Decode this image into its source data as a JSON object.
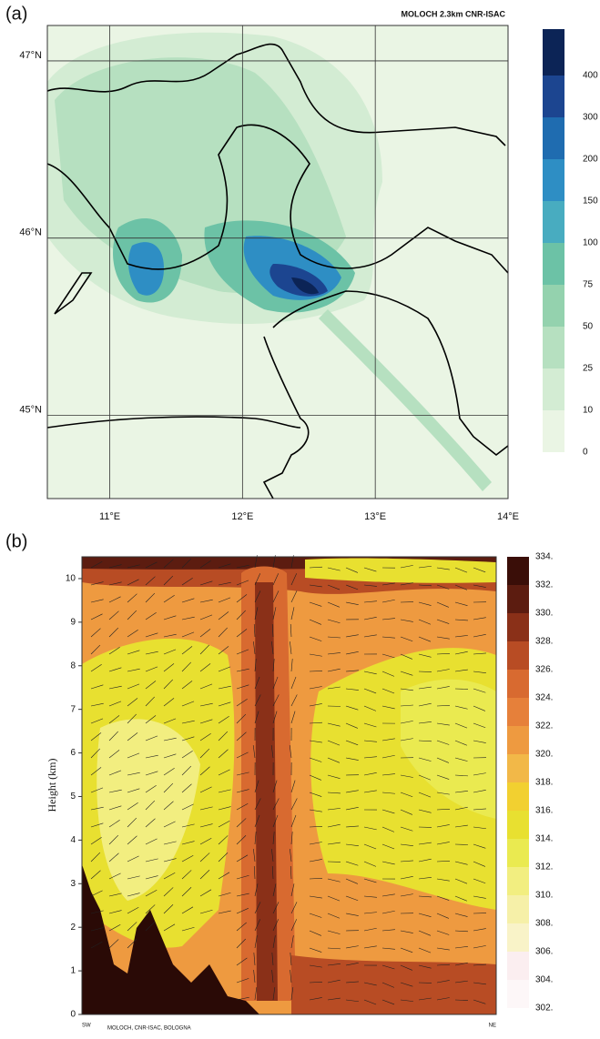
{
  "chart_data": [
    {
      "type": "map",
      "panel_label": "(a)",
      "annotation": "MOLOCH 2.3km  CNR-ISAC",
      "xlim": [
        10.53,
        14
      ],
      "xticks": [
        {
          "value": 11,
          "label": "11°E"
        },
        {
          "value": 12,
          "label": "12°E"
        },
        {
          "value": 13,
          "label": "13°E"
        },
        {
          "value": 14,
          "label": "14°E"
        }
      ],
      "ylim": [
        44.53,
        47.2
      ],
      "yticks": [
        {
          "value": 45,
          "label": "45°N"
        },
        {
          "value": 46,
          "label": "46°N"
        },
        {
          "value": 47,
          "label": "47°N"
        }
      ],
      "grid": true,
      "colorbar": {
        "levels": [
          0,
          10,
          25,
          50,
          75,
          100,
          150,
          200,
          300,
          400
        ],
        "colors": [
          "#eaf5e4",
          "#d3ecd3",
          "#b6e0c0",
          "#94d2ae",
          "#6cc2a6",
          "#48acc0",
          "#2e8ec4",
          "#1f6cb0",
          "#1c4590",
          "#0c2456"
        ]
      }
    },
    {
      "type": "cross-section",
      "panel_label": "(b)",
      "ylabel": "Height (km)",
      "ylim": [
        0,
        10.5
      ],
      "yticks": [
        0,
        1,
        2,
        3,
        4,
        5,
        6,
        7,
        8,
        9,
        10
      ],
      "x_start_label": "SW",
      "x_end_label": "NE",
      "footer": "MOLOCH, CNR-ISAC, BOLOGNA",
      "colorbar": {
        "levels": [
          {
            "value": 302,
            "label": "302."
          },
          {
            "value": 304,
            "label": "304."
          },
          {
            "value": 306,
            "label": "306."
          },
          {
            "value": 308,
            "label": "308."
          },
          {
            "value": 310,
            "label": "310."
          },
          {
            "value": 312,
            "label": "312."
          },
          {
            "value": 314,
            "label": "314."
          },
          {
            "value": 316,
            "label": "316."
          },
          {
            "value": 318,
            "label": "318."
          },
          {
            "value": 320,
            "label": "320."
          },
          {
            "value": 322,
            "label": "322."
          },
          {
            "value": 324,
            "label": "324."
          },
          {
            "value": 326,
            "label": "326."
          },
          {
            "value": 328,
            "label": "328."
          },
          {
            "value": 330,
            "label": "330."
          },
          {
            "value": 332,
            "label": "332."
          },
          {
            "value": 334,
            "label": "334."
          }
        ],
        "colors": [
          "#fdf7f8",
          "#fbeef0",
          "#f9f3c8",
          "#f6f0a8",
          "#f2ee80",
          "#eaea50",
          "#e8e030",
          "#f2d030",
          "#f2b848",
          "#ee9a40",
          "#e6803a",
          "#d86a30",
          "#b84c24",
          "#8a3018",
          "#5c1c10",
          "#3a0e08"
        ]
      }
    }
  ]
}
